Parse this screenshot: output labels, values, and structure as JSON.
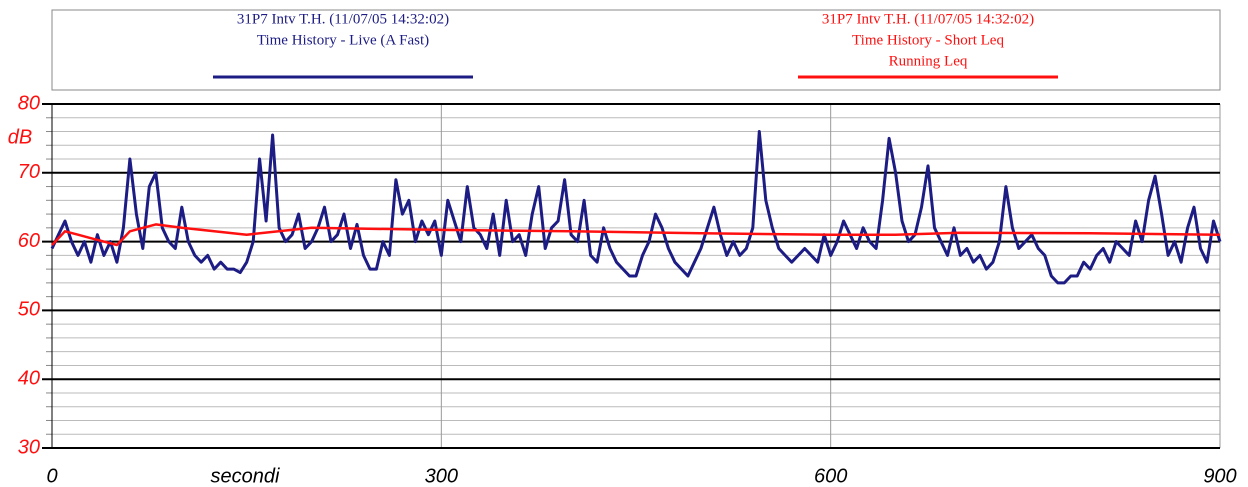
{
  "chart_data": {
    "type": "line",
    "y_label": "dB",
    "x_label": "secondi",
    "xlim": [
      0,
      900
    ],
    "xticks": [
      0,
      300,
      600,
      900
    ],
    "ylim": [
      30,
      80
    ],
    "yticks": [
      30,
      40,
      50,
      60,
      70,
      80
    ],
    "minor_grid_step": 2,
    "grid": true,
    "x": [
      0,
      5,
      10,
      15,
      20,
      25,
      30,
      35,
      40,
      45,
      50,
      55,
      60,
      65,
      70,
      75,
      80,
      85,
      90,
      95,
      100,
      105,
      110,
      115,
      120,
      125,
      130,
      135,
      140,
      145,
      150,
      155,
      160,
      165,
      170,
      175,
      180,
      185,
      190,
      195,
      200,
      205,
      210,
      215,
      220,
      225,
      230,
      235,
      240,
      245,
      250,
      255,
      260,
      265,
      270,
      275,
      280,
      285,
      290,
      295,
      300,
      305,
      310,
      315,
      320,
      325,
      330,
      335,
      340,
      345,
      350,
      355,
      360,
      365,
      370,
      375,
      380,
      385,
      390,
      395,
      400,
      405,
      410,
      415,
      420,
      425,
      430,
      435,
      440,
      445,
      450,
      455,
      460,
      465,
      470,
      475,
      480,
      485,
      490,
      495,
      500,
      505,
      510,
      515,
      520,
      525,
      530,
      535,
      540,
      545,
      550,
      555,
      560,
      565,
      570,
      575,
      580,
      585,
      590,
      595,
      600,
      605,
      610,
      615,
      620,
      625,
      630,
      635,
      640,
      645,
      650,
      655,
      660,
      665,
      670,
      675,
      680,
      685,
      690,
      695,
      700,
      705,
      710,
      715,
      720,
      725,
      730,
      735,
      740,
      745,
      750,
      755,
      760,
      765,
      770,
      775,
      780,
      785,
      790,
      795,
      800,
      805,
      810,
      815,
      820,
      825,
      830,
      835,
      840,
      845,
      850,
      855,
      860,
      865,
      870,
      875,
      880,
      885,
      890,
      895,
      900
    ],
    "series": [
      {
        "source": "31P7 Intv T.H. (11/07/05 14:32:02)",
        "name": "Time History - Live (A Fast)",
        "color": "#1c1c84",
        "values": [
          59,
          61,
          63,
          60,
          58,
          60,
          57,
          61,
          58,
          60,
          57,
          62,
          72,
          64,
          59,
          68,
          70,
          62,
          60,
          59,
          65,
          60,
          58,
          57,
          58,
          56,
          57,
          56,
          56,
          55.5,
          57,
          60,
          72,
          63,
          75.5,
          62,
          60,
          61,
          64,
          59,
          60,
          62,
          65,
          60,
          61,
          64,
          59,
          62.5,
          58,
          56,
          56,
          60,
          58,
          69,
          64,
          66,
          60,
          63,
          61,
          63,
          58,
          66,
          63,
          60,
          68,
          62,
          61,
          59,
          64,
          58,
          66,
          60,
          61,
          58,
          64,
          68,
          59,
          62,
          63,
          69,
          61,
          60,
          66,
          58,
          57,
          62,
          59,
          57,
          56,
          55,
          55,
          58,
          60,
          64,
          62,
          59,
          57,
          56,
          55,
          57,
          59,
          62,
          65,
          61,
          58,
          60,
          58,
          59,
          62,
          76,
          66,
          62,
          59,
          58,
          57,
          58,
          59,
          58,
          57,
          61,
          58,
          60,
          63,
          61,
          59,
          62,
          60,
          59,
          66,
          75,
          70,
          63,
          60,
          61,
          65,
          71,
          62,
          60,
          58,
          62,
          58,
          59,
          57,
          58,
          56,
          57,
          60,
          68,
          62,
          59,
          60,
          61,
          59,
          58,
          55,
          54,
          54,
          55,
          55,
          57,
          56,
          58,
          59,
          57,
          60,
          59,
          58,
          63,
          60,
          66,
          69.5,
          64,
          58,
          60,
          57,
          62,
          65,
          59,
          57,
          63,
          60
        ]
      },
      {
        "source": "31P7 Intv T.H. (11/07/05 14:32:02)",
        "name": "Time History - Short Leq",
        "subname": "Running Leq",
        "color": "#ff1010",
        "x": [
          0,
          10,
          20,
          30,
          40,
          50,
          60,
          80,
          100,
          150,
          200,
          300,
          400,
          500,
          600,
          650,
          700,
          800,
          900
        ],
        "values": [
          59.5,
          61.5,
          61,
          60.5,
          60,
          59.5,
          61.5,
          62.5,
          62,
          61,
          62,
          61.7,
          61.5,
          61.2,
          61,
          61,
          61.3,
          61.2,
          61
        ]
      }
    ]
  }
}
